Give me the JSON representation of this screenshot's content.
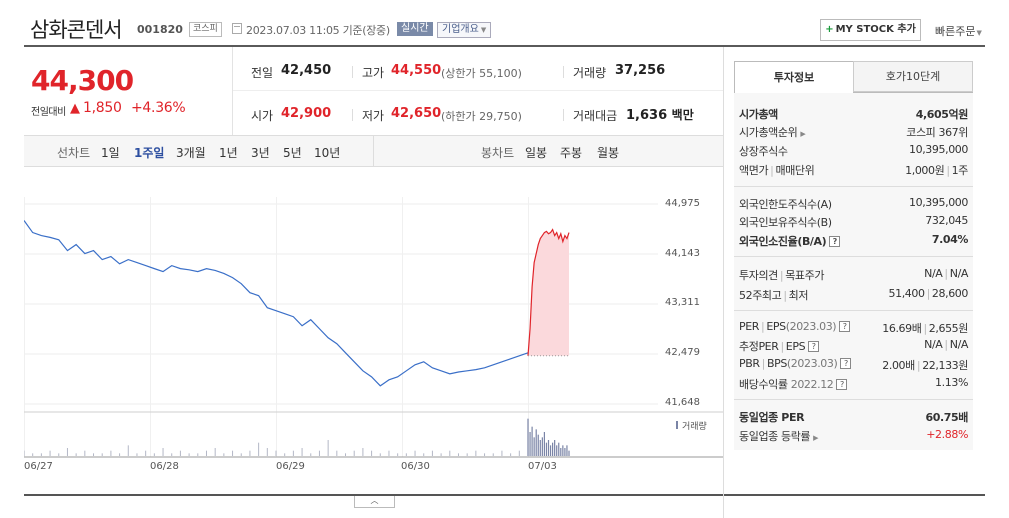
{
  "header": {
    "stock_name": "삼화콘덴서",
    "stock_code": "001820",
    "market": "코스피",
    "date_text": "2023.07.03 11:05 기준(장중)",
    "realtime_badge": "실시간",
    "company_info": "기업개요",
    "mystock_label": "MY STOCK 추가",
    "quick_order": "빠른주문"
  },
  "price": {
    "current": "44,300",
    "change_label": "전일대비",
    "change_value": "1,850",
    "change_rate": "+4.36%"
  },
  "stats": {
    "prev_label": "전일",
    "prev_value": "42,450",
    "high_label": "고가",
    "high_value": "44,550",
    "upper_limit_label": "(상한가",
    "upper_limit_value": "55,100)",
    "volume_label": "거래량",
    "volume_value": "37,256",
    "open_label": "시가",
    "open_value": "42,900",
    "low_label": "저가",
    "low_value": "42,650",
    "lower_limit_label": "(하한가",
    "lower_limit_value": "29,750)",
    "amount_label": "거래대금",
    "amount_value": "1,636",
    "amount_unit": "백만"
  },
  "chart_tabs": {
    "line_label": "선차트",
    "periods": [
      "1일",
      "1주일",
      "3개월",
      "1년",
      "3년",
      "5년",
      "10년"
    ],
    "active_period": "1주일",
    "candle_label": "봉차트",
    "candles": [
      "일봉",
      "주봉",
      "월봉"
    ]
  },
  "chart_data": {
    "type": "line",
    "y_ticks": [
      "44,975",
      "44,143",
      "43,311",
      "42,479",
      "41,648"
    ],
    "x_ticks": [
      "06/27",
      "06/28",
      "06/29",
      "06/30",
      "07/03"
    ],
    "ylim": [
      41648,
      44975
    ],
    "volume_label": "거래량",
    "reference_price": 42450,
    "series_prev_days": [
      44700,
      44500,
      44450,
      44420,
      44380,
      44200,
      44300,
      44150,
      44200,
      44050,
      44100,
      43980,
      44050,
      44000,
      43950,
      43900,
      43850,
      43950,
      43900,
      43880,
      43850,
      43900,
      43870,
      43820,
      43750,
      43650,
      43500,
      43450,
      43250,
      43200,
      43150,
      43100,
      42950,
      43050,
      42900,
      42750,
      42650,
      42500,
      42350,
      42200,
      42100,
      41950,
      42050,
      42100,
      42200,
      42300,
      42350,
      42250,
      42200,
      42150,
      42180,
      42200,
      42220,
      42250,
      42300,
      42350,
      42400,
      42450,
      42500
    ],
    "series_today": [
      42450,
      42900,
      43600,
      44000,
      44150,
      44300,
      44400,
      44450,
      44500,
      44520,
      44480,
      44500,
      44550,
      44450,
      44500,
      44400,
      44480,
      44350,
      44450,
      44400,
      44500
    ],
    "volume_prev_days": [
      2,
      1,
      1,
      2,
      1,
      3,
      1,
      2,
      1,
      1,
      2,
      1,
      4,
      1,
      2,
      1,
      3,
      1,
      2,
      1,
      1,
      2,
      3,
      1,
      2,
      1,
      2,
      5,
      3,
      2,
      1,
      2,
      3,
      1,
      2,
      6,
      2,
      1,
      2,
      3,
      2,
      1,
      2,
      1,
      1,
      2,
      1,
      2,
      1,
      2,
      1,
      1,
      2,
      1,
      1,
      2,
      1,
      2,
      1
    ],
    "volume_today": [
      14,
      9,
      11,
      7,
      10,
      8,
      6,
      7,
      9,
      5,
      6,
      4,
      5,
      6,
      4,
      5,
      3,
      4,
      3,
      4,
      2
    ]
  },
  "right_panel": {
    "tab_invest": "투자정보",
    "tab_orderbook": "호가10단계",
    "rows": {
      "market_cap_label": "시가총액",
      "market_cap_value": "4,605억원",
      "market_cap_rank_label": "시가총액순위",
      "market_cap_rank_value": "코스피 367위",
      "shares_label": "상장주식수",
      "shares_value": "10,395,000",
      "par_label": "액면가",
      "trade_unit_label": "매매단위",
      "par_value": "1,000원",
      "trade_unit_value": "1주",
      "foreign_limit_label": "외국인한도주식수(A)",
      "foreign_limit_value": "10,395,000",
      "foreign_hold_label": "외국인보유주식수(B)",
      "foreign_hold_value": "732,045",
      "foreign_ratio_label": "외국인소진율(B/A)",
      "foreign_ratio_value": "7.04%",
      "opinion_label": "투자의견",
      "target_label": "목표주가",
      "opinion_value": "N/A",
      "target_value": "N/A",
      "week52_label": "52주최고",
      "week52_low_label": "최저",
      "week52_high_value": "51,400",
      "week52_low_value": "28,600",
      "per_label": "PER",
      "eps_label": "EPS",
      "eps_year": "(2023.03)",
      "per_value": "16.69배",
      "eps_value": "2,655원",
      "est_per_label": "추정PER",
      "est_eps_label": "EPS",
      "est_per_value": "N/A",
      "est_eps_value": "N/A",
      "pbr_label": "PBR",
      "bps_label": "BPS",
      "bps_year": "(2023.03)",
      "pbr_value": "2.00배",
      "bps_value": "22,133원",
      "dividend_label": "배당수익률",
      "dividend_year": "2022.12",
      "dividend_value": "1.13%",
      "industry_per_label": "동일업종 PER",
      "industry_per_value": "60.75배",
      "industry_rate_label": "동일업종 등락률",
      "industry_rate_value": "+2.88%"
    }
  },
  "colors": {
    "up": "#e0242a",
    "line": "#3a6fc8",
    "active_tab": "#2d4fa0",
    "volume": "#7a84a6"
  }
}
